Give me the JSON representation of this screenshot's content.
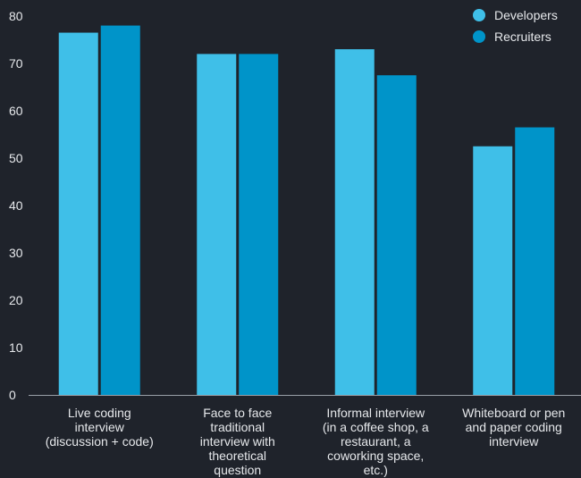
{
  "chart_data": {
    "type": "bar",
    "categories": [
      [
        "Live coding",
        "interview",
        "(discussion + code)"
      ],
      [
        "Face to face",
        "traditional",
        "interview with",
        "theoretical",
        "question"
      ],
      [
        "Informal interview",
        "(in a coffee shop, a",
        "restaurant, a",
        "coworking space,",
        "etc.)"
      ],
      [
        "Whiteboard or pen",
        "and paper coding",
        "interview"
      ]
    ],
    "series": [
      {
        "name": "Developers",
        "color": "#3fbfe8",
        "values": [
          76.5,
          72,
          73,
          52.5
        ]
      },
      {
        "name": "Recruiters",
        "color": "#0094c9",
        "values": [
          78,
          72,
          67.5,
          56.5
        ]
      }
    ],
    "ylim": [
      0,
      80
    ],
    "yticks": [
      0,
      10,
      20,
      30,
      40,
      50,
      60,
      70,
      80
    ],
    "grid": false,
    "legend": "top-right"
  }
}
